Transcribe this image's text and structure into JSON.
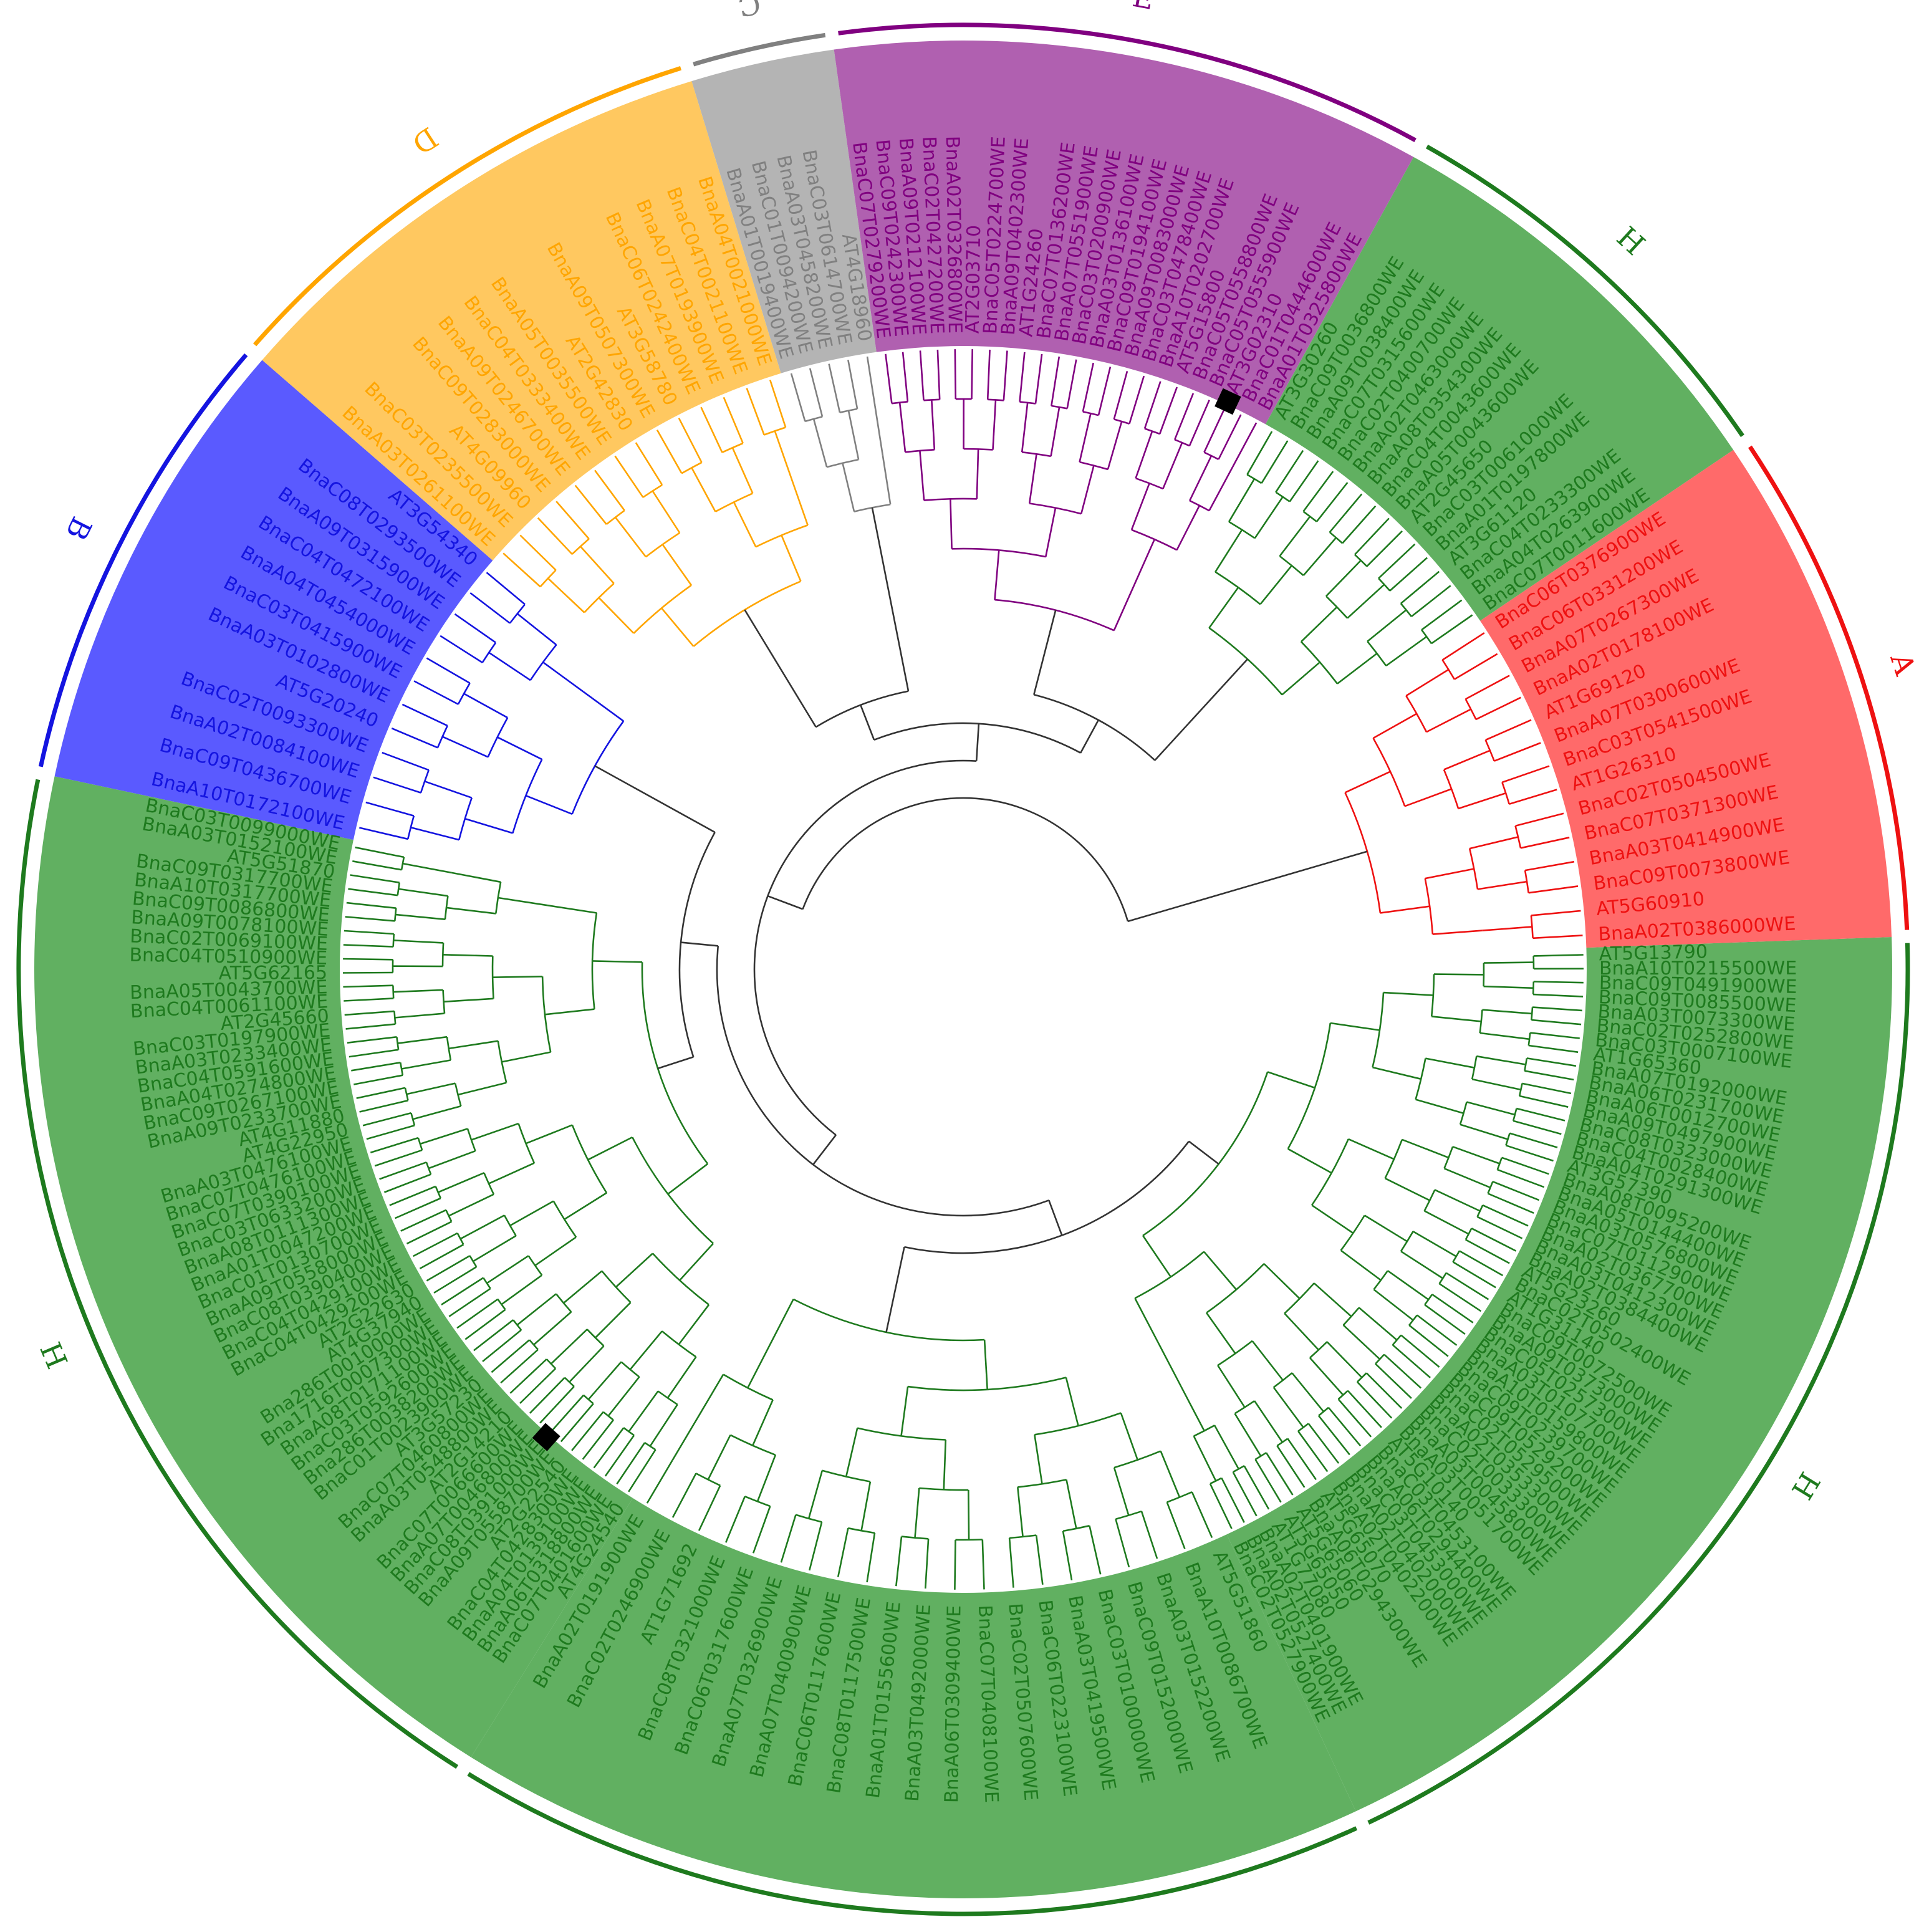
{
  "colors": {
    "H": "#1e7a1e",
    "A": "#ee1111",
    "B": "#1414e0",
    "D": "#ffa500",
    "C": "#808080",
    "E": "#800080",
    "H_fill": "#61b061",
    "A_fill": "#ff6a6a",
    "B_fill": "#5a5aff",
    "D_fill": "#ffc860",
    "C_fill": "#b4b4b4",
    "E_fill": "#b060b0",
    "backbone": "#333333",
    "marker": "#000000"
  },
  "clades": [
    {
      "id": "H1",
      "label": "H",
      "color_key": "H",
      "span_deg": [
        -2,
        65
      ]
    },
    {
      "id": "H2",
      "label": "H",
      "color_key": "H",
      "span_deg": [
        65,
        122
      ]
    },
    {
      "id": "H3",
      "label": "H",
      "color_key": "H",
      "span_deg": [
        122,
        192
      ]
    },
    {
      "id": "B",
      "label": "B",
      "color_key": "B",
      "span_deg": [
        192,
        221
      ]
    },
    {
      "id": "D",
      "label": "D",
      "color_key": "D",
      "span_deg": [
        221,
        253
      ]
    },
    {
      "id": "C",
      "label": "C",
      "color_key": "C",
      "span_deg": [
        253,
        262
      ]
    },
    {
      "id": "E",
      "label": "E",
      "color_key": "E",
      "span_deg": [
        262,
        299
      ]
    },
    {
      "id": "H4",
      "label": "H",
      "color_key": "H",
      "span_deg": [
        299,
        326
      ]
    },
    {
      "id": "A",
      "label": "A",
      "color_key": "A",
      "span_deg": [
        326,
        358
      ]
    }
  ],
  "leaves": {
    "A": [
      "BnaC06T0376900WE",
      "BnaC06T0331200WE",
      "BnaA07T0267300WE",
      "BnaA02T0178100WE",
      "AT1G69120",
      "BnaA07T0300600WE",
      "BnaC03T0541500WE",
      "AT1G26310",
      "BnaC02T0504500WE",
      "BnaC07T0371300WE",
      "BnaA03T0414900WE",
      "BnaC09T0073800WE",
      "AT5G60910",
      "BnaA02T0386000WE"
    ],
    "H4": [
      "AT3G30260",
      "BnaC09T0036800WE",
      "BnaA09T0038400WE",
      "BnaC07T0315600WE",
      "BnaC02T0400700WE",
      "BnaA02T0463000WE",
      "BnaA08T0354300WE",
      "BnaC04T0043600WE",
      "BnaA05T0043600WE",
      "AT2G45650",
      "BnaC03T0061000WE",
      "BnaA01T0197800WE",
      "AT3G61120",
      "BnaC04T0233300WE",
      "BnaA04T0263900WE",
      "BnaC07T0011600WE"
    ],
    "E": [
      "BnaC07T0279200WE",
      "BnaC09T0242300WE",
      "BnaA09T0212100WE",
      "BnaC02T0427200WE",
      "BnaA02T0326800WE",
      "AT2G03710",
      "BnaC05T0224700WE",
      "BnaA09T0402300WE",
      "AT1G24260",
      "BnaC07T0136200WE",
      "BnaA07T0551900WE",
      "BnaC03T0200900WE",
      "BnaA03T0136100WE",
      "BnaC09T0194100WE",
      "BnaA09T0083000WE",
      "BnaC03T0478400WE",
      "BnaA10T0202700WE",
      "AT5G15800",
      "BnaC05T0558800WE",
      "BnaC05T0555900WE",
      "AT3G02310",
      "BnaC01T0444600WE",
      "BnaA01T0325800WE"
    ],
    "C": [
      "BnaA01T0019400WE",
      "BnaC01T0094200WE",
      "BnaA03T0458200WE",
      "BnaC03T0614700WE",
      "AT4G18960"
    ],
    "D": [
      "BnaA03T0261100WE",
      "BnaC03T0235500WE",
      "AT4G09960",
      "BnaC09T0283000WE",
      "BnaA09T0246700WE",
      "BnaC04T0333400WE",
      "BnaA05T0035500WE",
      "AT2G42830",
      "BnaA09T0507300WE",
      "AT3G58780",
      "BnaC06T0242400WE",
      "BnaA07T0193900WE",
      "BnaC04T0021100WE",
      "BnaA04T0021000WE"
    ],
    "B": [
      "BnaA10T0172100WE",
      "BnaC09T0436700WE",
      "BnaA02T0084100WE",
      "BnaC02T0093300WE",
      "AT5G20240",
      "BnaA03T0102800WE",
      "BnaC03T0415900WE",
      "BnaA04T0454000WE",
      "BnaC04T0472100WE",
      "BnaA09T0315900WE",
      "BnaC08T0293500WE",
      "AT3G54340"
    ],
    "H3": [
      "AT4G24540",
      "BnaC07T0401600WE",
      "BnaA06T0318800WE",
      "BnaA04T0139100WE",
      "BnaC04T0428300WE",
      "AT2G22540",
      "BnaA09T0558700WE",
      "BnaC08T0391000WE",
      "BnaA07T0046800WE",
      "BnaC07T0066600WE",
      "AT2G14210",
      "BnaA03T0548800WE",
      "BnaC07T0460800WE",
      "AT3G57230",
      "BnaC01T0023900WE",
      "Bna286T0038200WE",
      "BnaC03T0592600WE",
      "BnaA08T0171100WE",
      "Bna1716T0007300WE",
      "Bna286T0010000WE",
      "AT4G37940",
      "AT2G22630",
      "BnaC04T0429200WE",
      "BnaC04T0429100WE",
      "BnaC08T0390400WE",
      "BnaA09T0558000WE",
      "BnaC01T0130700WE",
      "BnaA01T0047200WE",
      "BnaA08T0111300WE",
      "BnaC03T0633200WE",
      "BnaC07T0390100WE",
      "BnaC07T0476100WE",
      "BnaA03T0476100WE",
      "AT4G22950",
      "AT4G11880",
      "BnaA09T0233700WE",
      "BnaC09T0267100WE",
      "BnaA04T0274800WE",
      "BnaC04T0591600WE",
      "BnaA03T0233400WE",
      "BnaC03T0197900WE",
      "AT2G45660",
      "BnaC04T0061100WE",
      "BnaA05T0043700WE",
      "AT5G62165",
      "BnaC04T0510900WE",
      "BnaC02T0069100WE",
      "BnaA09T0078100WE",
      "BnaC09T0086800WE",
      "BnaA10T0317700WE",
      "BnaC09T0317700WE",
      "AT5G51870",
      "BnaA03T0152100WE",
      "BnaC03T0099000WE"
    ],
    "H2": [
      "AT5G51860",
      "BnaA10T0086700WE",
      "BnaA03T0152200WE",
      "BnaC09T0152000WE",
      "BnaC03T0100000WE",
      "BnaA03T0419500WE",
      "BnaC06T0223100WE",
      "BnaC02T0507600WE",
      "BnaC07T0408100WE",
      "BnaA06T0309400WE",
      "BnaA03T0492000WE",
      "BnaA01T0155600WE",
      "BnaC08T0117500WE",
      "BnaC06T0117600WE",
      "BnaA07T0400900WE",
      "BnaA07T0326900WE",
      "BnaC06T0317600WE",
      "BnaC08T0321000WE",
      "AT1G71692",
      "BnaC02T0246900WE",
      "BnaA02T0191900WE"
    ],
    "H1": [
      "AT5G13790",
      "BnaA10T0215500WE",
      "BnaC09T0491900WE",
      "BnaC09T0085500WE",
      "BnaA03T0073300WE",
      "BnaC02T0252800WE",
      "BnaC03T0007100WE",
      "AT1G65360",
      "BnaA07T0192000WE",
      "BnaA06T0231700WE",
      "BnaA06T0012700WE",
      "BnaA09T0497900WE",
      "BnaC08T0323000WE",
      "BnaC04T0028400WE",
      "BnaA04T0291300WE",
      "AT3G57390",
      "BnaA08T0095200WE",
      "BnaA05T0144400WE",
      "BnaA03T0576800WE",
      "BnaC07T0112900WE",
      "BnaA02T0367700WE",
      "BnaA03T0412300WE",
      "BnaA02T0384400WE",
      "AT5G23260",
      "BnaC02T0502400WE",
      "AT1G31140",
      "BnaC09T0072500WE",
      "BnaA09T0373000WE",
      "BnaC05T0257300WE",
      "BnaA03T0107700WE",
      "BnaA10T0159800WE",
      "BnaC09T0239700WE",
      "BnaC09T0529200WE",
      "BnaC02T0529500WE",
      "BnaA02T0353300WE",
      "BnaC02T0033300WE",
      "BnaA03T0045800WE",
      "BnaA03T0051700WE",
      "AT5G10140",
      "BnaC03T0453100WE",
      "BnaA06T0294400WE",
      "BnaC03T0453000WE",
      "BnaA02T0402000WE",
      "BnaA02T0402200WE",
      "AT5G65070",
      "BnaA06T0294300WE",
      "AT5G65060",
      "AT5G65050",
      "AT1G77080",
      "BnaA02T0401900WE",
      "BnaA02T0527400WE",
      "BnaC02T0527900WE"
    ]
  },
  "markers": [
    {
      "clade": "H3",
      "leaf": "BnaC08T0391000WE"
    },
    {
      "clade": "E",
      "leaf": "AT3G02310"
    }
  ]
}
